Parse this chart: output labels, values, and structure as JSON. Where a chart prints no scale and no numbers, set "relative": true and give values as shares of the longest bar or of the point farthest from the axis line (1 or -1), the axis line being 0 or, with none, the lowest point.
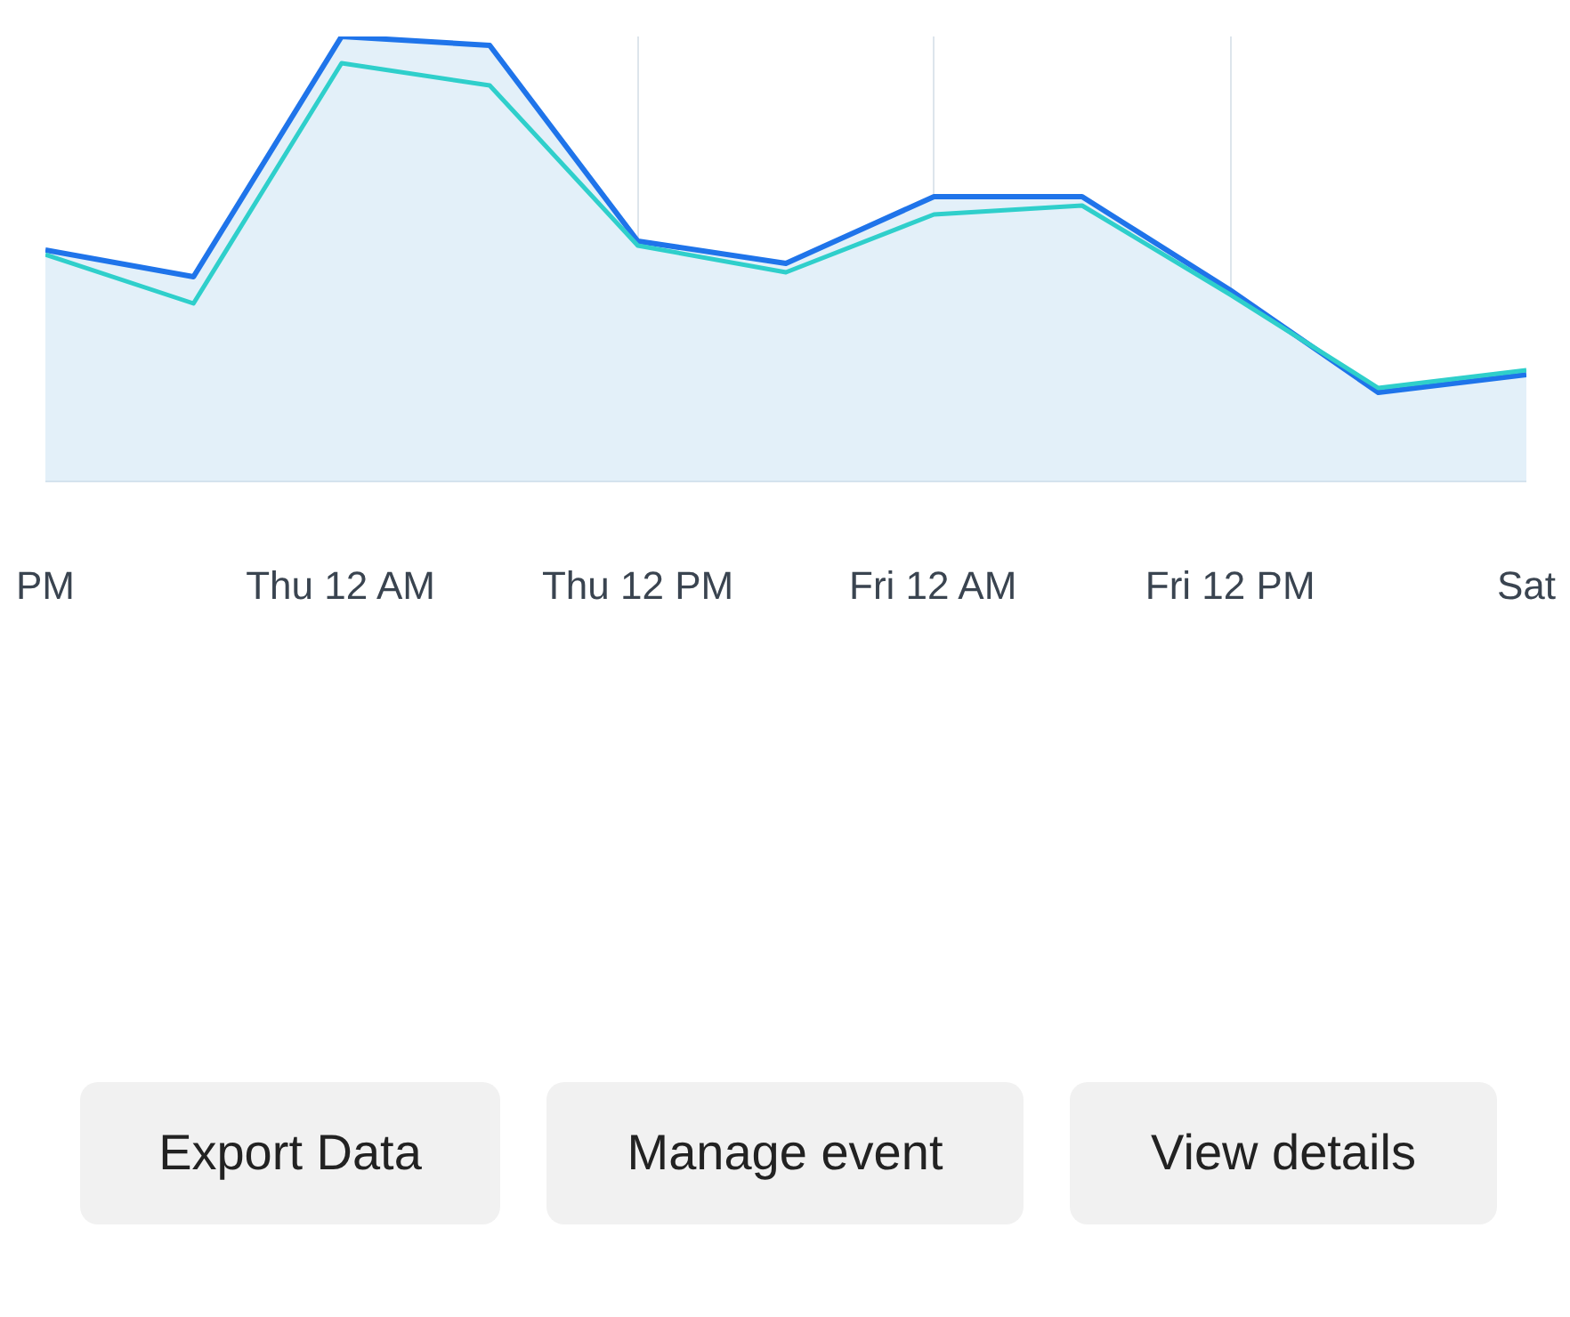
{
  "chart_data": {
    "type": "line",
    "relative": true,
    "categories": [
      "PM",
      null,
      "Thu 12 AM",
      null,
      "Thu 12 PM",
      null,
      "Fri 12 AM",
      null,
      "Fri 12 PM",
      null,
      "Sat"
    ],
    "grid": "x",
    "tick_labels": "x",
    "marker": "none",
    "line_style": "solid",
    "series": [
      {
        "type": "area",
        "color": "#1f74ea",
        "values": [
          0.52,
          0.46,
          1.0,
          0.98,
          0.54,
          0.49,
          0.64,
          0.64,
          0.43,
          0.2,
          0.24
        ]
      },
      {
        "color": "#2fcfcb",
        "values": [
          0.51,
          0.4,
          0.94,
          0.89,
          0.53,
          0.47,
          0.6,
          0.62,
          0.42,
          0.21,
          0.25
        ]
      }
    ],
    "annotations": [
      "Export Data",
      "Manage event",
      "View details"
    ]
  }
}
